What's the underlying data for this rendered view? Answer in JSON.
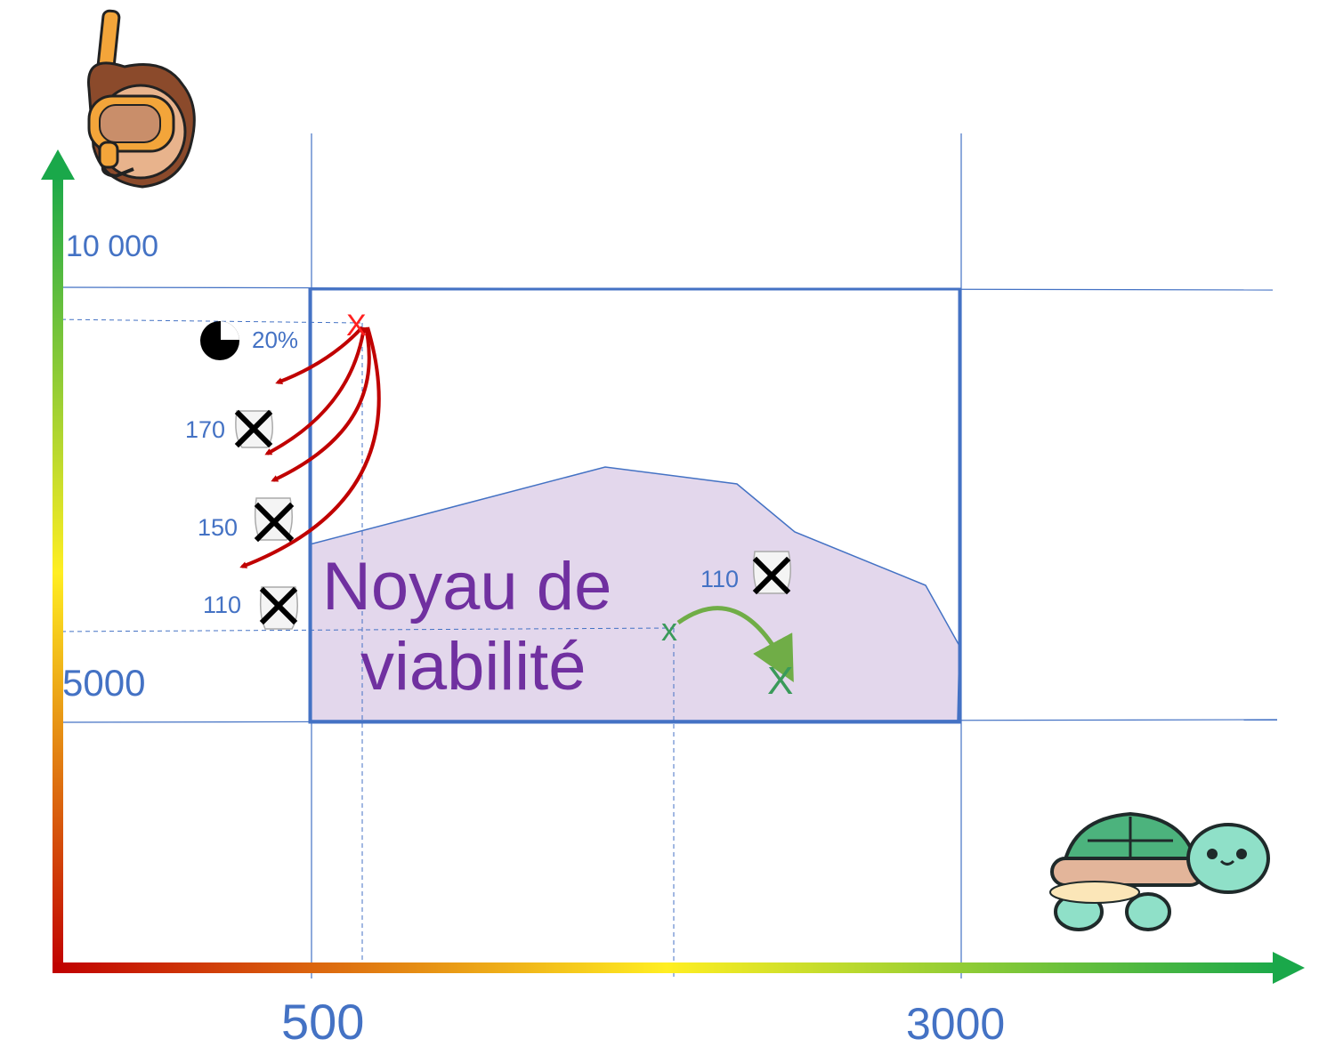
{
  "axes": {
    "x_ticks": [
      "500",
      "3000"
    ],
    "y_ticks": [
      "10 000",
      "5000"
    ]
  },
  "zone": {
    "label_line1": "Noyau de",
    "label_line2": "viabilité"
  },
  "markers": {
    "start": "X",
    "green_start": "x",
    "green_end": "X"
  },
  "annotations": {
    "percent": "20%",
    "outside_values": [
      "170",
      "150",
      "110"
    ],
    "inside_value": "110"
  },
  "icons": [
    "snorkeler-icon",
    "turtle-icon",
    "pie-chart-icon",
    "fish-bag-icon",
    "cross-icon"
  ],
  "colors": {
    "grid": "#4472c4",
    "zone_fill": "#e3d7ec",
    "zone_label": "#7030a0",
    "red_arrows": "#c00000",
    "green_arrow": "#70ad47",
    "axis_low": "#c00000",
    "axis_mid": "#ffff33",
    "axis_high": "#1aa84a"
  }
}
